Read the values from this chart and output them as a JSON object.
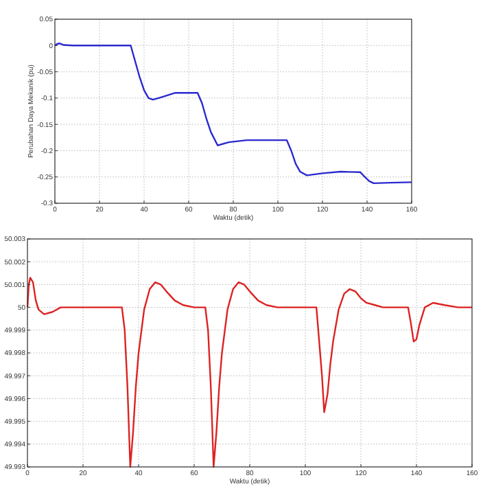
{
  "chart_data": [
    {
      "type": "line",
      "xlabel": "Waktu (detik)",
      "ylabel": "Perubahan Daya Mekanik (pu)",
      "xlim": [
        0,
        160
      ],
      "xticks": [
        0,
        20,
        40,
        60,
        80,
        100,
        120,
        140,
        160
      ],
      "ylim": [
        -0.3,
        0.05
      ],
      "yticks": [
        -0.3,
        -0.25,
        -0.2,
        -0.15,
        -0.1,
        -0.05,
        0,
        0.05
      ],
      "grid": true,
      "series": [
        {
          "color": "#2a2ad0",
          "x": [
            0,
            1,
            2,
            4,
            8,
            20,
            34,
            36,
            38,
            40,
            42,
            44,
            48,
            54,
            64,
            66,
            68,
            70,
            73,
            78,
            86,
            104,
            106,
            108,
            110,
            113,
            120,
            128,
            137,
            139,
            141,
            143,
            150,
            160
          ],
          "values": [
            0,
            0.003,
            0.004,
            0.001,
            0,
            0,
            0,
            -0.03,
            -0.06,
            -0.085,
            -0.1,
            -0.103,
            -0.098,
            -0.09,
            -0.09,
            -0.11,
            -0.14,
            -0.165,
            -0.19,
            -0.184,
            -0.18,
            -0.18,
            -0.2,
            -0.225,
            -0.24,
            -0.247,
            -0.243,
            -0.24,
            -0.241,
            -0.25,
            -0.258,
            -0.262,
            -0.261,
            -0.26
          ]
        }
      ]
    },
    {
      "type": "line",
      "xlabel": "Waktu (detik)",
      "xlim": [
        0,
        160
      ],
      "xticks": [
        0,
        20,
        40,
        60,
        80,
        100,
        120,
        140,
        160
      ],
      "ylim": [
        49.993,
        50.003
      ],
      "yticks": [
        49.993,
        49.994,
        49.995,
        49.996,
        49.997,
        49.998,
        49.999,
        50,
        50.001,
        50.002,
        50.003
      ],
      "grid": true,
      "series": [
        {
          "color": "#dd2222",
          "x": [
            0,
            0.5,
            1,
            2,
            3,
            4,
            6,
            9,
            12,
            20,
            34,
            35,
            36,
            37,
            38,
            39,
            40,
            42,
            44,
            46,
            48,
            50,
            53,
            56,
            60,
            64,
            65,
            66,
            67,
            68,
            69,
            70,
            72,
            74,
            76,
            78,
            80,
            83,
            86,
            90,
            104,
            105,
            106,
            106.8,
            108,
            109,
            110,
            112,
            114,
            116,
            118,
            120,
            122,
            125,
            128,
            137,
            138,
            139,
            140,
            141,
            143,
            146,
            150,
            155,
            160
          ],
          "values": [
            50,
            50.001,
            50.0013,
            50.0011,
            50.0003,
            49.9999,
            49.9997,
            49.9998,
            50,
            50,
            50,
            49.999,
            49.9965,
            49.993,
            49.9945,
            49.9965,
            49.998,
            49.9999,
            50.0008,
            50.0011,
            50.001,
            50.0007,
            50.0003,
            50.0001,
            50,
            50,
            49.999,
            49.9965,
            49.993,
            49.9945,
            49.9965,
            49.998,
            49.9999,
            50.0008,
            50.0011,
            50.001,
            50.0007,
            50.0003,
            50.0001,
            50,
            50,
            49.9985,
            49.997,
            49.9954,
            49.9962,
            49.9975,
            49.9985,
            49.9999,
            50.0006,
            50.0008,
            50.0007,
            50.0004,
            50.0002,
            50.0001,
            50,
            50,
            49.9993,
            49.9985,
            49.9986,
            49.9992,
            50,
            50.0002,
            50.0001,
            50,
            50
          ]
        }
      ]
    }
  ]
}
